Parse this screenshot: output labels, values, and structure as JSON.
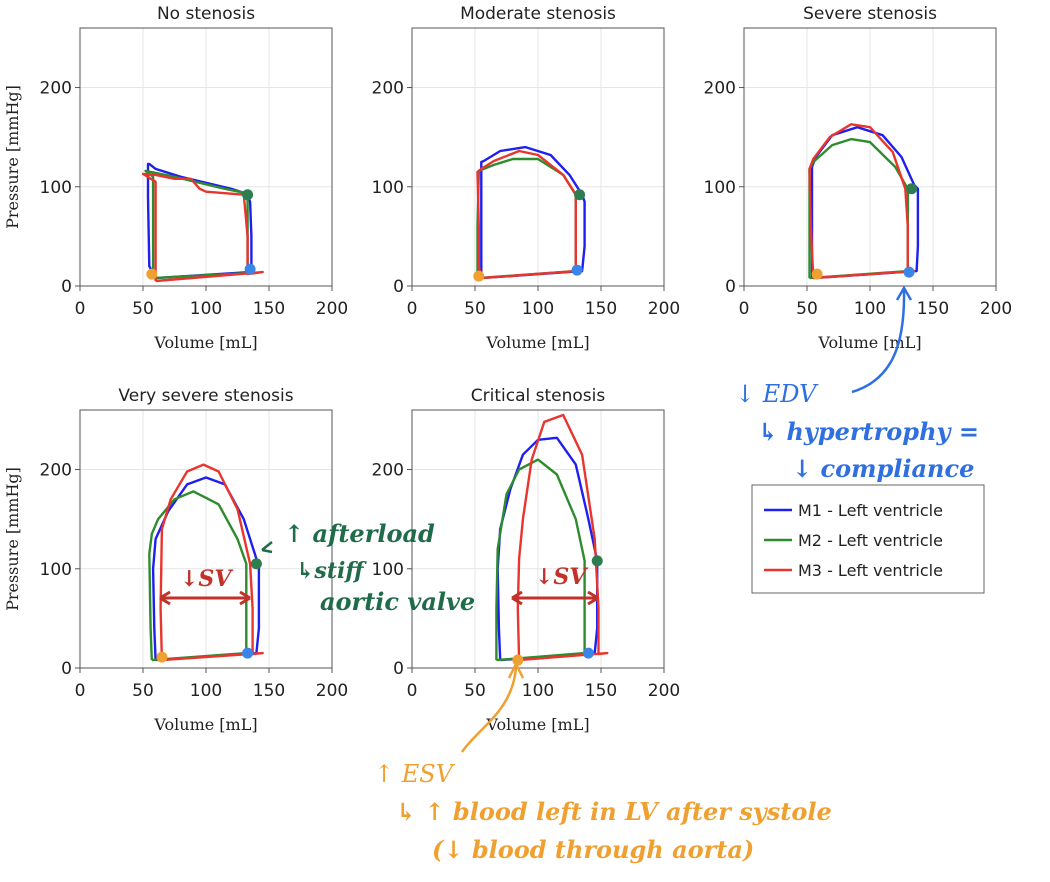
{
  "shared": {
    "xlabel": "Volume [mL]",
    "ylabel": "Pressure [mmHg]",
    "xticks": [
      0,
      50,
      100,
      150,
      200
    ],
    "yticks": [
      0,
      100,
      200
    ],
    "xlim": [
      0,
      200
    ],
    "ylim": [
      0,
      260
    ],
    "grid": true
  },
  "legend": {
    "placement": "right",
    "items": [
      {
        "label": "M1 - Left ventricle",
        "color": "#1f1fef"
      },
      {
        "label": "M2 - Left ventricle",
        "color": "#2e8b2e"
      },
      {
        "label": "M3 - Left ventricle",
        "color": "#e8352e"
      }
    ]
  },
  "chart_data": [
    {
      "type": "line",
      "title": "No stenosis",
      "series": [
        {
          "name": "M1 - Left ventricle",
          "color": "#1f1fef",
          "x": [
            60,
            135,
            136,
            136,
            135,
            132,
            120,
            100,
            80,
            60,
            55,
            54,
            54,
            55,
            60
          ],
          "y": [
            8,
            14,
            20,
            50,
            85,
            93,
            98,
            104,
            110,
            118,
            123,
            123,
            90,
            20,
            8
          ]
        },
        {
          "name": "M2 - Left ventricle",
          "color": "#2e8b2e",
          "x": [
            58,
            133,
            133,
            133,
            130,
            115,
            95,
            75,
            60,
            52,
            58,
            58,
            58
          ],
          "y": [
            8,
            13,
            30,
            90,
            94,
            98,
            104,
            110,
            114,
            116,
            110,
            50,
            8
          ]
        },
        {
          "name": "M3 - Left ventricle",
          "color": "#e8352e",
          "x": [
            60,
            145,
            133,
            133,
            130,
            110,
            100,
            95,
            88,
            75,
            60,
            50,
            60,
            60,
            60
          ],
          "y": [
            5,
            14,
            12,
            50,
            92,
            94,
            95,
            98,
            108,
            108,
            112,
            113,
            105,
            50,
            5
          ]
        }
      ],
      "markers": [
        {
          "x": 57,
          "y": 12,
          "color": "#f0a030"
        },
        {
          "x": 135,
          "y": 17,
          "color": "#3a86e8"
        },
        {
          "x": 133,
          "y": 92,
          "color": "#2e7d50"
        }
      ]
    },
    {
      "type": "line",
      "title": "Moderate stenosis",
      "series": [
        {
          "name": "M1 - Left ventricle",
          "color": "#1f1fef",
          "x": [
            55,
            135,
            137,
            137,
            135,
            125,
            110,
            90,
            70,
            57,
            55,
            55,
            55
          ],
          "y": [
            8,
            15,
            40,
            85,
            92,
            112,
            132,
            140,
            136,
            126,
            125,
            60,
            8
          ]
        },
        {
          "name": "M2 - Left ventricle",
          "color": "#2e8b2e",
          "x": [
            52,
            130,
            130,
            130,
            120,
            100,
            80,
            65,
            53,
            52,
            52
          ],
          "y": [
            8,
            15,
            60,
            92,
            112,
            128,
            128,
            122,
            116,
            60,
            8
          ]
        },
        {
          "name": "M3 - Left ventricle",
          "color": "#e8352e",
          "x": [
            55,
            130,
            130,
            130,
            120,
            100,
            85,
            65,
            55,
            52,
            53,
            53,
            55
          ],
          "y": [
            8,
            15,
            60,
            92,
            112,
            132,
            136,
            126,
            118,
            115,
            60,
            20,
            8
          ]
        }
      ],
      "markers": [
        {
          "x": 53,
          "y": 10,
          "color": "#f0a030"
        },
        {
          "x": 131,
          "y": 16,
          "color": "#3a86e8"
        },
        {
          "x": 133,
          "y": 92,
          "color": "#2e7d50"
        }
      ]
    },
    {
      "type": "line",
      "title": "Severe stenosis",
      "series": [
        {
          "name": "M1 - Left ventricle",
          "color": "#1f1fef",
          "x": [
            55,
            137,
            138,
            138,
            135,
            125,
            110,
            90,
            70,
            57,
            54,
            54
          ],
          "y": [
            8,
            15,
            40,
            98,
            102,
            130,
            152,
            160,
            152,
            130,
            120,
            8
          ]
        },
        {
          "name": "M2 - Left ventricle",
          "color": "#2e8b2e",
          "x": [
            52,
            130,
            130,
            130,
            120,
            100,
            85,
            70,
            55,
            52,
            52
          ],
          "y": [
            8,
            15,
            60,
            98,
            120,
            145,
            148,
            142,
            125,
            118,
            8
          ]
        },
        {
          "name": "M3 - Left ventricle",
          "color": "#e8352e",
          "x": [
            55,
            135,
            130,
            130,
            128,
            118,
            100,
            85,
            68,
            55,
            52,
            53,
            55
          ],
          "y": [
            8,
            15,
            14,
            60,
            98,
            135,
            160,
            163,
            150,
            128,
            118,
            60,
            8
          ]
        }
      ],
      "markers": [
        {
          "x": 58,
          "y": 12,
          "color": "#f0a030"
        },
        {
          "x": 131,
          "y": 14,
          "color": "#3a86e8"
        },
        {
          "x": 133,
          "y": 98,
          "color": "#2e7d50"
        }
      ]
    },
    {
      "type": "line",
      "title": "Very severe stenosis",
      "series": [
        {
          "name": "M1 - Left ventricle",
          "color": "#1f1fef",
          "x": [
            60,
            140,
            142,
            142,
            140,
            130,
            115,
            100,
            85,
            70,
            60,
            58,
            59,
            60
          ],
          "y": [
            8,
            15,
            40,
            105,
            110,
            150,
            185,
            192,
            185,
            158,
            130,
            100,
            40,
            8
          ]
        },
        {
          "name": "M2 - Left ventricle",
          "color": "#2e8b2e",
          "x": [
            57,
            132,
            132,
            132,
            125,
            110,
            90,
            75,
            62,
            57,
            55,
            56,
            57
          ],
          "y": [
            8,
            15,
            40,
            105,
            130,
            165,
            178,
            170,
            150,
            135,
            115,
            40,
            8
          ]
        },
        {
          "name": "M3 - Left ventricle",
          "color": "#e8352e",
          "x": [
            65,
            145,
            137,
            137,
            135,
            125,
            110,
            98,
            85,
            72,
            65,
            64,
            65
          ],
          "y": [
            8,
            15,
            14,
            60,
            105,
            160,
            198,
            205,
            198,
            170,
            140,
            60,
            8
          ]
        }
      ],
      "markers": [
        {
          "x": 65,
          "y": 11,
          "color": "#f0a030"
        },
        {
          "x": 133,
          "y": 15,
          "color": "#3a86e8"
        },
        {
          "x": 140,
          "y": 105,
          "color": "#2e7d50"
        }
      ]
    },
    {
      "type": "line",
      "title": "Critical stenosis",
      "series": [
        {
          "name": "M1 - Left ventricle",
          "color": "#1f1fef",
          "x": [
            70,
            145,
            147,
            147,
            140,
            130,
            115,
            100,
            88,
            78,
            70,
            68,
            69,
            70
          ],
          "y": [
            8,
            15,
            40,
            108,
            150,
            205,
            232,
            230,
            215,
            180,
            140,
            100,
            40,
            8
          ]
        },
        {
          "name": "M2 - Left ventricle",
          "color": "#2e8b2e",
          "x": [
            67,
            137,
            137,
            137,
            130,
            115,
            100,
            85,
            75,
            68,
            67,
            67
          ],
          "y": [
            8,
            15,
            40,
            108,
            150,
            195,
            210,
            200,
            175,
            120,
            60,
            8
          ]
        },
        {
          "name": "M3 - Left ventricle",
          "color": "#e8352e",
          "x": [
            85,
            155,
            148,
            148,
            145,
            135,
            120,
            105,
            95,
            88,
            85,
            84,
            85
          ],
          "y": [
            8,
            15,
            14,
            60,
            130,
            215,
            255,
            248,
            210,
            150,
            110,
            60,
            8
          ]
        }
      ],
      "markers": [
        {
          "x": 84,
          "y": 8,
          "color": "#f0a030"
        },
        {
          "x": 140,
          "y": 15,
          "color": "#3a86e8"
        },
        {
          "x": 147,
          "y": 108,
          "color": "#2e7d50"
        }
      ]
    }
  ],
  "annotations": {
    "sv_label_1": "↓SV",
    "sv_label_2": "↓SV",
    "afterload_1": "↑ afterload",
    "afterload_2": "↳stiff",
    "afterload_3": "aortic valve",
    "edv_1": "↓ EDV",
    "edv_2": "↳ hypertrophy =",
    "edv_3": "↓ compliance",
    "esv_1": "↑ ESV",
    "esv_2": "↳ ↑ blood left in LV after systole",
    "esv_3": "(↓ blood through aorta)"
  },
  "ink": {
    "sv": "#c0322a",
    "afterload": "#1f6b4a",
    "edv": "#2f6fe0",
    "esv": "#f0a030"
  }
}
